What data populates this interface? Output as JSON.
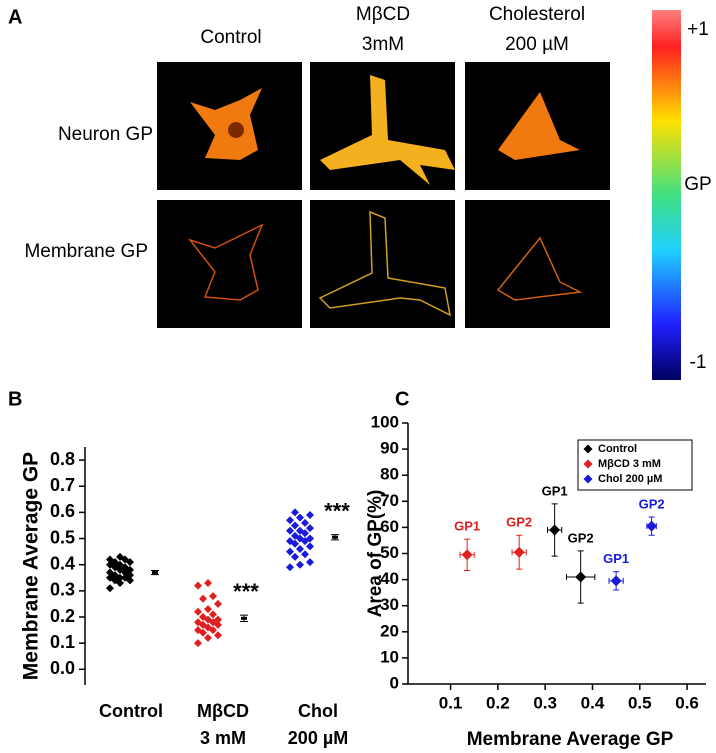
{
  "panel_a": {
    "label": "A",
    "columns": [
      [
        "Control"
      ],
      [
        "MβCD",
        "3mM"
      ],
      [
        "Cholesterol",
        "200 µM"
      ]
    ],
    "rows": [
      "Neuron GP",
      "Membrane GP"
    ],
    "colorbar": {
      "max_label": "+1",
      "title": "GP",
      "min_label": "-1"
    }
  },
  "chart_data": [
    {
      "type": "strip",
      "label": "B",
      "ylabel": "Membrane Average GP",
      "categories": [
        [
          "Control"
        ],
        [
          "MβCD",
          "3 mM"
        ],
        [
          "Chol",
          "200 µM"
        ]
      ],
      "colors": [
        "#000000",
        "#e02020",
        "#1a1adc"
      ],
      "points": [
        [
          0.31,
          0.33,
          0.34,
          0.34,
          0.35,
          0.35,
          0.35,
          0.36,
          0.36,
          0.37,
          0.37,
          0.38,
          0.38,
          0.39,
          0.39,
          0.4,
          0.4,
          0.41,
          0.41,
          0.42,
          0.42,
          0.43
        ],
        [
          0.1,
          0.12,
          0.13,
          0.14,
          0.15,
          0.15,
          0.16,
          0.17,
          0.17,
          0.18,
          0.18,
          0.19,
          0.19,
          0.2,
          0.21,
          0.22,
          0.23,
          0.25,
          0.27,
          0.28,
          0.32,
          0.33
        ],
        [
          0.39,
          0.4,
          0.41,
          0.43,
          0.44,
          0.45,
          0.46,
          0.47,
          0.48,
          0.49,
          0.49,
          0.5,
          0.5,
          0.51,
          0.52,
          0.53,
          0.53,
          0.54,
          0.55,
          0.56,
          0.57,
          0.58,
          0.59,
          0.6
        ]
      ],
      "means": [
        0.37,
        0.195,
        0.505
      ],
      "errors": [
        0.008,
        0.012,
        0.01
      ],
      "annotations": [
        {
          "category": 1,
          "text": "***"
        },
        {
          "category": 2,
          "text": "***"
        }
      ],
      "ylim": [
        -0.06,
        0.85
      ],
      "yticks": [
        {
          "value": 0,
          "label": "0.0"
        },
        0.1,
        0.2,
        0.3,
        0.4,
        0.5,
        0.6,
        0.7,
        0.8
      ]
    },
    {
      "type": "scatter",
      "label": "C",
      "xlabel": "Membrane Average GP",
      "ylabel": "Area of GP(%)",
      "legend": "upper right",
      "series": [
        {
          "name": "Control",
          "color": "#000000",
          "x": [
            0.32,
            0.375
          ],
          "values": [
            59,
            41
          ],
          "xerr": [
            0.015,
            0.03
          ],
          "yerr": [
            10,
            10
          ],
          "point_labels": [
            "GP1",
            "GP2"
          ]
        },
        {
          "name": "MβCD 3 mM",
          "color": "#e02020",
          "x": [
            0.135,
            0.245
          ],
          "values": [
            49.5,
            50.5
          ],
          "xerr": [
            0.015,
            0.015
          ],
          "yerr": [
            6,
            6.5
          ],
          "point_labels": [
            "GP1",
            "GP2"
          ]
        },
        {
          "name": "Chol 200 µM",
          "color": "#1a1adc",
          "x": [
            0.45,
            0.525
          ],
          "values": [
            39.5,
            60.5
          ],
          "xerr": [
            0.015,
            0.01
          ],
          "yerr": [
            3.5,
            3.5
          ],
          "point_labels": [
            "GP1",
            "GP2"
          ]
        }
      ],
      "xlim": [
        0.01,
        0.64
      ],
      "ylim": [
        0,
        100
      ],
      "xticks": [
        0.1,
        0.2,
        0.3,
        0.4,
        0.5,
        0.6
      ],
      "yticks": [
        0,
        10,
        20,
        30,
        40,
        50,
        60,
        70,
        80,
        90,
        100
      ]
    }
  ]
}
